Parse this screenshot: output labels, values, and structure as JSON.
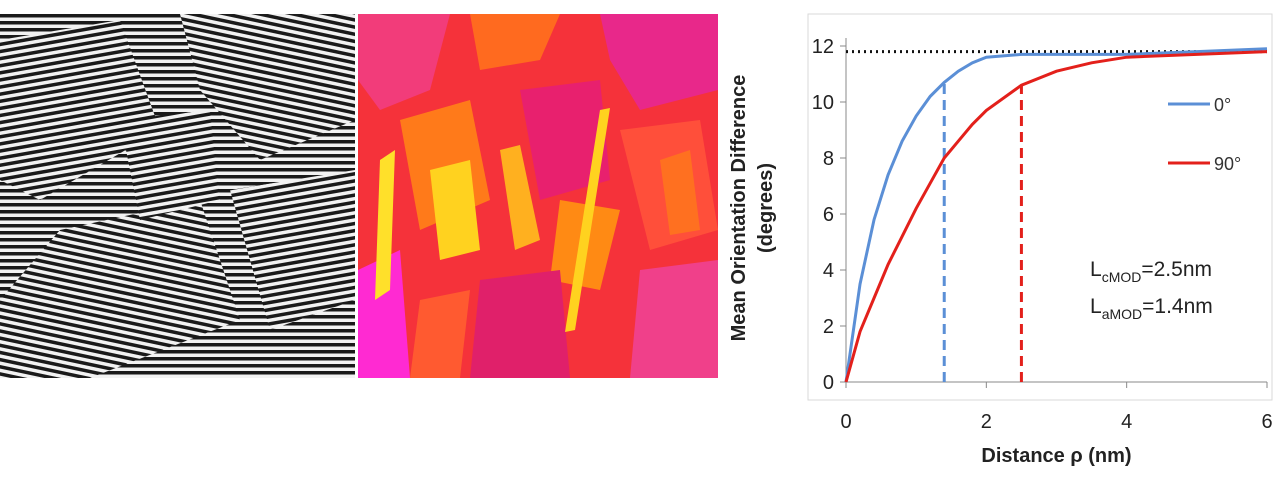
{
  "chart_data": {
    "type": "line",
    "xlabel": "Distance ρ (nm)",
    "ylabel": [
      "Mean Orientation Difference",
      "(degrees)"
    ],
    "x": [
      0,
      0.2,
      0.4,
      0.6,
      0.8,
      1.0,
      1.2,
      1.4,
      1.6,
      1.8,
      2.0,
      2.5,
      3,
      3.5,
      4,
      5,
      6
    ],
    "series": [
      {
        "name": "0°",
        "color": "#5b8fd6",
        "values": [
          0,
          3.5,
          5.8,
          7.4,
          8.6,
          9.5,
          10.2,
          10.7,
          11.1,
          11.4,
          11.6,
          11.7,
          11.7,
          11.7,
          11.7,
          11.8,
          11.9
        ]
      },
      {
        "name": "90°",
        "color": "#e3201b",
        "values": [
          0,
          1.8,
          3.0,
          4.2,
          5.2,
          6.2,
          7.1,
          8.0,
          8.6,
          9.2,
          9.7,
          10.6,
          11.1,
          11.4,
          11.6,
          11.7,
          11.8
        ]
      }
    ],
    "hlines": [
      {
        "y": 11.8,
        "color": "#111111"
      }
    ],
    "vlines": [
      {
        "x": 1.4,
        "ymax": 10.7,
        "color": "#5b8fd6"
      },
      {
        "x": 2.5,
        "ymax": 10.6,
        "color": "#e3201b"
      }
    ],
    "annotations": [
      {
        "main": "L",
        "sub": "cMOD",
        "rest": "=2.5nm"
      },
      {
        "main": "L",
        "sub": "aMOD",
        "rest": "=1.4nm"
      }
    ],
    "xlim": [
      0,
      6
    ],
    "xticks": [
      0,
      2,
      4,
      6
    ],
    "ylim": [
      0,
      12
    ],
    "yticks": [
      0,
      2,
      4,
      6,
      8,
      10,
      12
    ]
  }
}
